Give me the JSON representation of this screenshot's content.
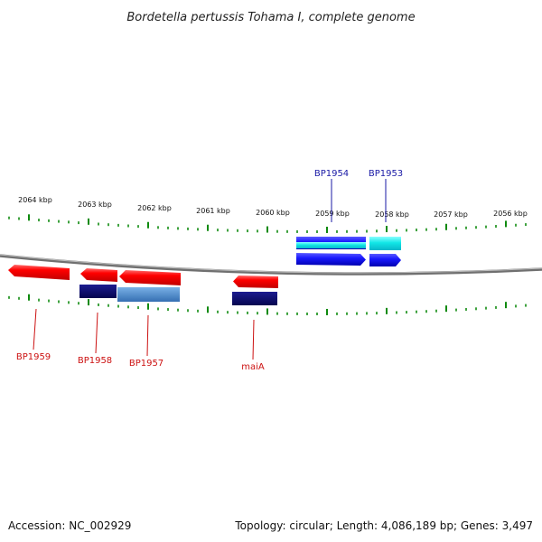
{
  "title": "Bordetella pertussis Tohama I, complete genome",
  "scale_labels": [
    "2064 kbp",
    "2063 kbp",
    "2062 kbp",
    "2061 kbp",
    "2060 kbp",
    "2059 kbp",
    "2058 kbp",
    "2057 kbp",
    "2056 kbp"
  ],
  "gene_labels": {
    "bp1954": "BP1954",
    "bp1953": "BP1953",
    "bp1959": "BP1959",
    "bp1958": "BP1958",
    "bp1957": "BP1957",
    "maia": "maiA"
  },
  "footer": {
    "accession": "Accession: NC_002929",
    "summary": "Topology: circular; Length: 4,086,189 bp; Genes: 3,497"
  },
  "colors": {
    "forward_gene": "#1a1aff",
    "forward_gene_light": "#1ee5e5",
    "reverse_gene": "#ff0000",
    "reverse_dark": "#0b0b6e",
    "reverse_light": "#4f8fd0",
    "ticks": "#0f8a0f",
    "backbone": "#707070"
  }
}
